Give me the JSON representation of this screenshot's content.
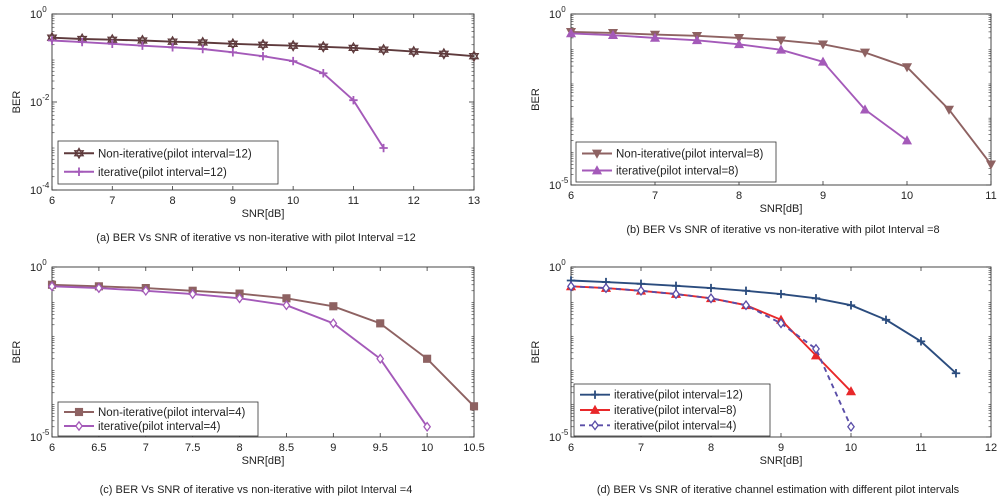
{
  "chart_data": [
    {
      "type": "line",
      "caption": "(a) BER Vs SNR of iterative vs non-iterative with pilot Interval =12",
      "xlabel": "SNR[dB]",
      "ylabel": "BER",
      "yscale": "log",
      "xlim": [
        6,
        13
      ],
      "ylim_exp": [
        -4,
        0
      ],
      "xticks": [
        "6",
        "7",
        "8",
        "9",
        "10",
        "11",
        "12",
        "13"
      ],
      "yticks": [
        {
          "base": "10",
          "exp": "0"
        },
        {
          "base": "10",
          "exp": "-2"
        },
        {
          "base": "10",
          "exp": "-4"
        }
      ],
      "legend_position": "bottom-left",
      "series": [
        {
          "name": "Non-iterative(pilot interval=12)",
          "color": "#5e3a3c",
          "marker": "hexagram",
          "x": [
            6,
            6.5,
            7,
            7.5,
            8,
            8.5,
            9,
            9.5,
            10,
            10.5,
            11,
            11.5,
            12,
            12.5,
            13
          ],
          "y": [
            0.29,
            0.27,
            0.26,
            0.25,
            0.235,
            0.225,
            0.21,
            0.2,
            0.19,
            0.18,
            0.17,
            0.155,
            0.14,
            0.125,
            0.11
          ]
        },
        {
          "name": "iterative(pilot interval=12)",
          "color": "#a45ab9",
          "marker": "plus",
          "x": [
            6,
            6.5,
            7,
            7.5,
            8,
            8.5,
            9,
            9.5,
            10,
            10.5,
            11,
            11.5
          ],
          "y": [
            0.25,
            0.23,
            0.21,
            0.19,
            0.175,
            0.16,
            0.135,
            0.11,
            0.085,
            0.045,
            0.011,
            0.0009
          ]
        }
      ]
    },
    {
      "type": "line",
      "caption": "(b) BER Vs SNR of iterative vs non-iterative with pilot Interval =8",
      "xlabel": "SNR[dB]",
      "ylabel": "BER",
      "yscale": "log",
      "xlim": [
        6,
        11
      ],
      "ylim_exp": [
        -5,
        0
      ],
      "xticks": [
        "6",
        "7",
        "8",
        "9",
        "10",
        "11"
      ],
      "yticks": [
        {
          "base": "10",
          "exp": "0"
        },
        {
          "base": "10",
          "exp": "-5"
        }
      ],
      "legend_position": "bottom-left",
      "series": [
        {
          "name": "Non-iterative(pilot interval=8)",
          "color": "#8e6262",
          "marker": "triangle-down",
          "x": [
            6,
            6.5,
            7,
            7.5,
            8,
            8.5,
            9,
            9.5,
            10,
            10.5,
            11
          ],
          "y": [
            0.3,
            0.28,
            0.25,
            0.23,
            0.2,
            0.17,
            0.13,
            0.075,
            0.028,
            0.0016,
            4e-05
          ]
        },
        {
          "name": "iterative(pilot interval=8)",
          "color": "#a45ab9",
          "marker": "triangle-up",
          "x": [
            6,
            6.5,
            7,
            7.5,
            8,
            8.5,
            9,
            9.5,
            10
          ],
          "y": [
            0.27,
            0.24,
            0.2,
            0.17,
            0.13,
            0.09,
            0.04,
            0.0016,
            0.0002
          ]
        }
      ]
    },
    {
      "type": "line",
      "caption": "(c) BER Vs SNR of iterative vs non-iterative with pilot Interval =4",
      "xlabel": "SNR[dB]",
      "ylabel": "BER",
      "yscale": "log",
      "xlim": [
        6,
        10.5
      ],
      "ylim_exp": [
        -5,
        0
      ],
      "xticks": [
        "6",
        "6.5",
        "7",
        "7.5",
        "8",
        "8.5",
        "9",
        "9.5",
        "10",
        "10.5"
      ],
      "yticks": [
        {
          "base": "10",
          "exp": "0"
        },
        {
          "base": "10",
          "exp": "-5"
        }
      ],
      "legend_position": "bottom-left",
      "series": [
        {
          "name": "Non-iterative(pilot interval=4)",
          "color": "#8e6262",
          "marker": "square",
          "x": [
            6,
            6.5,
            7,
            7.5,
            8,
            8.5,
            9,
            9.5,
            10,
            10.5
          ],
          "y": [
            0.3,
            0.27,
            0.24,
            0.2,
            0.165,
            0.12,
            0.07,
            0.022,
            0.002,
            8e-05
          ]
        },
        {
          "name": "iterative(pilot interval=4)",
          "color": "#a45ab9",
          "marker": "diamond",
          "x": [
            6,
            6.5,
            7,
            7.5,
            8,
            8.5,
            9,
            9.5,
            10
          ],
          "y": [
            0.27,
            0.24,
            0.2,
            0.16,
            0.12,
            0.075,
            0.022,
            0.002,
            2e-05
          ]
        }
      ]
    },
    {
      "type": "line",
      "caption": "(d) BER Vs SNR of iterative channel estimation with different pilot intervals",
      "xlabel": "SNR[dB]",
      "ylabel": "BER",
      "yscale": "log",
      "xlim": [
        6,
        12
      ],
      "ylim_exp": [
        -5,
        0
      ],
      "xticks": [
        "6",
        "7",
        "8",
        "9",
        "10",
        "11",
        "12"
      ],
      "yticks": [
        {
          "base": "10",
          "exp": "0"
        },
        {
          "base": "10",
          "exp": "-5"
        }
      ],
      "legend_position": "bottom-left",
      "series": [
        {
          "name": "iterative(pilot interval=12)",
          "color": "#2b4c7e",
          "marker": "plus",
          "dashed": false,
          "x": [
            6,
            6.5,
            7,
            7.5,
            8,
            8.5,
            9,
            9.5,
            10,
            10.5,
            11,
            11.5
          ],
          "y": [
            0.4,
            0.36,
            0.32,
            0.28,
            0.24,
            0.2,
            0.16,
            0.12,
            0.075,
            0.028,
            0.0065,
            0.00075
          ]
        },
        {
          "name": "iterative(pilot interval=8)",
          "color": "#e8282a",
          "marker": "triangle-up",
          "dashed": false,
          "x": [
            6,
            6.5,
            7,
            7.5,
            8,
            8.5,
            9,
            9.5,
            10
          ],
          "y": [
            0.27,
            0.24,
            0.2,
            0.16,
            0.12,
            0.075,
            0.028,
            0.0025,
            0.00022
          ]
        },
        {
          "name": "iterative(pilot interval=4)",
          "color": "#5a4ea8",
          "marker": "diamond",
          "dashed": true,
          "x": [
            6,
            6.5,
            7,
            7.5,
            8,
            8.5,
            9,
            9.5,
            10
          ],
          "y": [
            0.27,
            0.24,
            0.2,
            0.16,
            0.12,
            0.075,
            0.022,
            0.0039,
            2e-05
          ]
        }
      ]
    }
  ]
}
